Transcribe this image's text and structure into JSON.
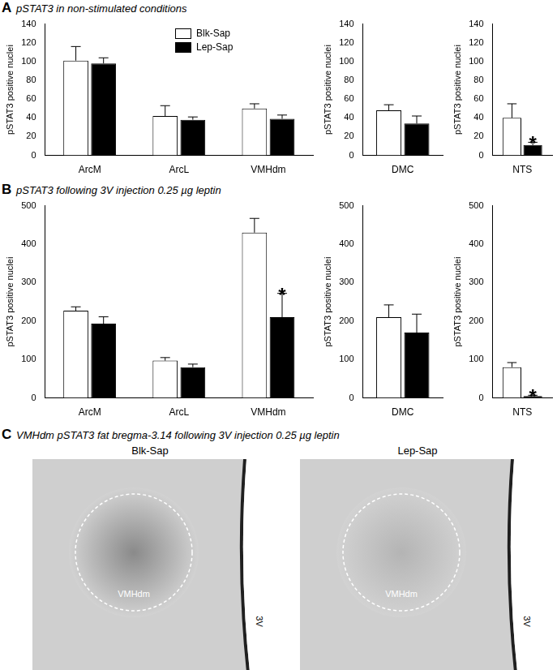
{
  "chart_data": [
    {
      "type": "bar",
      "categories": [
        "ArcM",
        "ArcL",
        "VMHdm"
      ],
      "ylabel": "pSTAT3 positive nuclei",
      "ylim": [
        0,
        140
      ],
      "yticks": [
        0,
        20,
        40,
        60,
        80,
        100,
        120,
        140
      ],
      "grid": false,
      "legend": "top",
      "series": [
        {
          "name": "Blk-Sap",
          "color": "#ffffff",
          "values": [
            101,
            42,
            50
          ],
          "errors": [
            15,
            11,
            5
          ]
        },
        {
          "name": "Lep-Sap",
          "color": "#000000",
          "values": [
            98,
            38,
            39
          ],
          "errors": [
            6,
            3,
            4
          ]
        }
      ]
    },
    {
      "type": "bar",
      "categories": [
        "DMC"
      ],
      "ylabel": "pSTAT3 positive nuclei",
      "ylim": [
        0,
        140
      ],
      "yticks": [
        0,
        20,
        40,
        60,
        80,
        100,
        120,
        140
      ],
      "grid": false,
      "series": [
        {
          "name": "Blk-Sap",
          "color": "#ffffff",
          "values": [
            48
          ],
          "errors": [
            6
          ]
        },
        {
          "name": "Lep-Sap",
          "color": "#000000",
          "values": [
            34
          ],
          "errors": [
            8
          ]
        }
      ]
    },
    {
      "type": "bar",
      "categories": [
        "NTS"
      ],
      "ylabel": "pSTAT3 positive nuclei",
      "ylim": [
        0,
        140
      ],
      "yticks": [
        0,
        20,
        40,
        60,
        80,
        100,
        120,
        140
      ],
      "grid": false,
      "series": [
        {
          "name": "Blk-Sap",
          "color": "#ffffff",
          "values": [
            40
          ],
          "errors": [
            15
          ]
        },
        {
          "name": "Lep-Sap",
          "color": "#000000",
          "values": [
            11
          ],
          "errors": [
            3
          ]
        }
      ],
      "annotations": [
        {
          "text": "*",
          "category": "NTS",
          "series": "Lep-Sap"
        }
      ]
    },
    {
      "type": "bar",
      "categories": [
        "ArcM",
        "ArcL",
        "VMHdm"
      ],
      "ylabel": "pSTAT3 positive nuclei",
      "ylim": [
        0,
        500
      ],
      "yticks": [
        0,
        100,
        200,
        300,
        400,
        500
      ],
      "grid": false,
      "series": [
        {
          "name": "Blk-Sap",
          "color": "#ffffff",
          "values": [
            227,
            97,
            430
          ],
          "errors": [
            10,
            8,
            37
          ]
        },
        {
          "name": "Lep-Sap",
          "color": "#000000",
          "values": [
            193,
            80,
            210
          ],
          "errors": [
            18,
            8,
            62
          ]
        }
      ],
      "annotations": [
        {
          "text": "*",
          "category": "VMHdm",
          "series": "Lep-Sap"
        }
      ]
    },
    {
      "type": "bar",
      "categories": [
        "DMC"
      ],
      "ylabel": "pSTAT3 positive nuclei",
      "ylim": [
        0,
        500
      ],
      "yticks": [
        0,
        100,
        200,
        300,
        400,
        500
      ],
      "grid": false,
      "series": [
        {
          "name": "Blk-Sap",
          "color": "#ffffff",
          "values": [
            210
          ],
          "errors": [
            32
          ]
        },
        {
          "name": "Lep-Sap",
          "color": "#000000",
          "values": [
            170
          ],
          "errors": [
            48
          ]
        }
      ]
    },
    {
      "type": "bar",
      "categories": [
        "NTS"
      ],
      "ylabel": "pSTAT3 positive nuclei",
      "ylim": [
        0,
        500
      ],
      "yticks": [
        0,
        100,
        200,
        300,
        400,
        500
      ],
      "grid": false,
      "series": [
        {
          "name": "Blk-Sap",
          "color": "#ffffff",
          "values": [
            80
          ],
          "errors": [
            12
          ]
        },
        {
          "name": "Lep-Sap",
          "color": "#000000",
          "values": [
            5
          ],
          "errors": [
            2
          ]
        }
      ],
      "annotations": [
        {
          "text": "*",
          "category": "NTS",
          "series": "Lep-Sap"
        }
      ]
    }
  ],
  "panels": [
    {
      "label": "A",
      "title": "pSTAT3 in non-stimulated conditions"
    },
    {
      "label": "B",
      "title": "pSTAT3 following 3V injection 0.25 µg leptin"
    },
    {
      "label": "C",
      "title": "VMHdm pSTAT3 fat bregma-3.14 following 3V injection 0.25 µg leptin",
      "images": [
        {
          "title": "Blk-Sap",
          "region": "VMHdm",
          "landmark": "3V"
        },
        {
          "title": "Lep-Sap",
          "region": "VMHdm",
          "landmark": "3V"
        }
      ]
    }
  ]
}
